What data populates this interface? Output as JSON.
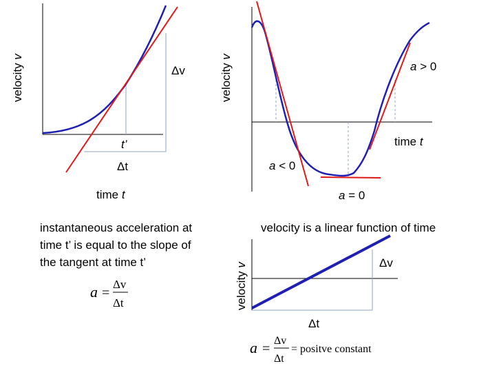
{
  "colors": {
    "curve": "#1f1fb4",
    "tangent": "#e01919",
    "axis": "#000000",
    "guide": "#8ea5c8"
  },
  "panel1": {
    "ylabel": "velocity",
    "ylabel_var": "v",
    "xlabel": "time",
    "xlabel_var": "t",
    "t_prime": "t’",
    "delta_v": "Δv",
    "delta_t": "Δt"
  },
  "panel2": {
    "ylabel": "velocity",
    "ylabel_var": "v",
    "xlabel": "time",
    "xlabel_var": "t",
    "a_pos": "a > 0",
    "a_neg": "a < 0",
    "a_zero": "a = 0"
  },
  "text_block": {
    "line1": "instantaneous acceleration at",
    "line2": "time t’ is equal to the slope of",
    "line3": "the tangent at time t’",
    "formula_lhs": "a",
    "formula_eq": "=",
    "formula_num": "Δv",
    "formula_den": "Δt"
  },
  "panel3": {
    "title": "velocity is a linear function of time",
    "ylabel": "velocity",
    "ylabel_var": "v",
    "delta_v": "Δv",
    "delta_t": "Δt",
    "formula_lhs": "a",
    "formula_eq": "=",
    "formula_num": "Δv",
    "formula_den": "Δt",
    "formula_rhs": "= positve constant"
  }
}
